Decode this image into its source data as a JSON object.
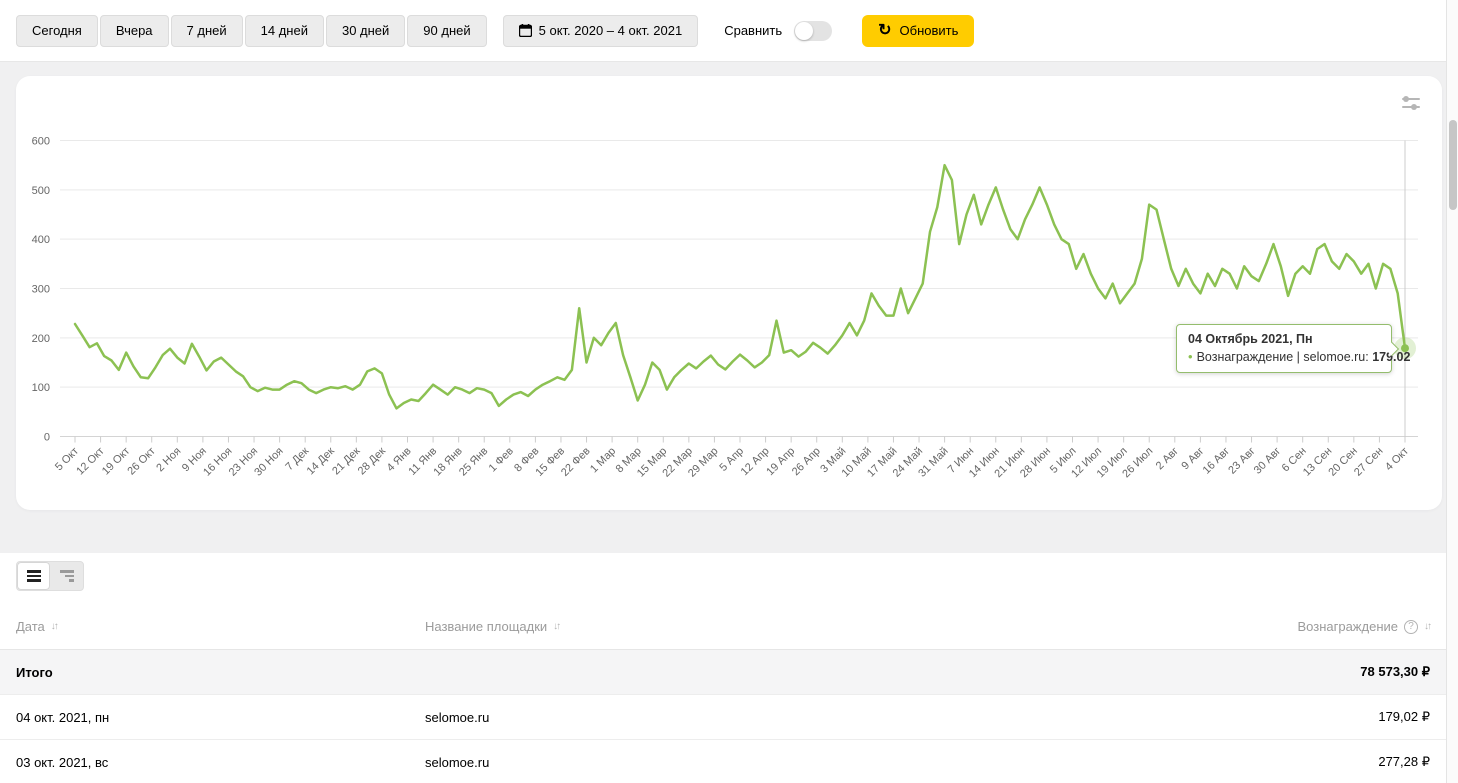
{
  "toolbar": {
    "presets": [
      "Сегодня",
      "Вчера",
      "7 дней",
      "14 дней",
      "30 дней",
      "90 дней"
    ],
    "date_range": "5 окт. 2020 – 4 окт. 2021",
    "compare_label": "Сравнить",
    "compare_on": false,
    "refresh_label": "Обновить",
    "refresh_glyph": "↻"
  },
  "colors": {
    "accent_yellow": "#ffcc00",
    "line_green": "#8cc152",
    "halo_green": "rgba(141,195,84,0.25)"
  },
  "chart_data": {
    "type": "line",
    "title": "",
    "ylabel": "",
    "xlabel": "",
    "ylim": [
      0,
      600
    ],
    "y_ticks": [
      0,
      100,
      200,
      300,
      400,
      500,
      600
    ],
    "grid": true,
    "legend": "none",
    "x_ticks": [
      "5 Окт",
      "12 Окт",
      "19 Окт",
      "26 Окт",
      "2 Ноя",
      "9 Ноя",
      "16 Ноя",
      "23 Ноя",
      "30 Ноя",
      "7 Дек",
      "14 Дек",
      "21 Дек",
      "28 Дек",
      "4 Янв",
      "11 Янв",
      "18 Янв",
      "25 Янв",
      "1 Фев",
      "8 Фев",
      "15 Фев",
      "22 Фев",
      "1 Мар",
      "8 Мар",
      "15 Мар",
      "22 Мар",
      "29 Мар",
      "5 Апр",
      "12 Апр",
      "19 Апр",
      "26 Апр",
      "3 Май",
      "10 Май",
      "17 Май",
      "24 Май",
      "31 Май",
      "7 Июн",
      "14 Июн",
      "21 Июн",
      "28 Июн",
      "5 Июл",
      "12 Июл",
      "19 Июл",
      "26 Июл",
      "2 Авг",
      "9 Авг",
      "16 Авг",
      "23 Авг",
      "30 Авг",
      "6 Сен",
      "13 Сен",
      "20 Сен",
      "27 Сен",
      "4 Окт"
    ],
    "series": [
      {
        "name": "Вознаграждение | selomoe.ru",
        "color": "#8cc152",
        "values": [
          228,
          205,
          181,
          189,
          163,
          154,
          135,
          170,
          142,
          120,
          118,
          140,
          165,
          178,
          160,
          148,
          188,
          162,
          134,
          152,
          160,
          146,
          132,
          122,
          100,
          92,
          99,
          95,
          95,
          105,
          112,
          108,
          95,
          88,
          95,
          100,
          98,
          102,
          95,
          105,
          132,
          138,
          128,
          85,
          57,
          68,
          75,
          72,
          88,
          105,
          95,
          85,
          100,
          95,
          88,
          98,
          95,
          88,
          62,
          75,
          85,
          90,
          82,
          95,
          105,
          112,
          120,
          115,
          135,
          260,
          150,
          200,
          185,
          210,
          230,
          165,
          120,
          73,
          105,
          150,
          135,
          95,
          120,
          135,
          148,
          138,
          152,
          164,
          146,
          136,
          152,
          166,
          154,
          140,
          150,
          165,
          235,
          170,
          175,
          162,
          172,
          190,
          180,
          168,
          185,
          205,
          230,
          205,
          235,
          290,
          265,
          245,
          245,
          300,
          250,
          280,
          310,
          415,
          465,
          550,
          520,
          390,
          450,
          490,
          430,
          470,
          505,
          460,
          420,
          400,
          440,
          470,
          505,
          470,
          430,
          400,
          390,
          340,
          370,
          330,
          300,
          280,
          310,
          270,
          290,
          310,
          360,
          470,
          460,
          400,
          340,
          305,
          340,
          310,
          290,
          330,
          305,
          340,
          330,
          300,
          345,
          325,
          315,
          350,
          390,
          345,
          285,
          330,
          345,
          330,
          380,
          390,
          355,
          340,
          370,
          355,
          330,
          350,
          300,
          350,
          340,
          290,
          179
        ]
      }
    ]
  },
  "tooltip": {
    "title": "04 Октябрь 2021, Пн",
    "bullet": "•",
    "series_label": "Вознаграждение | selomoe.ru:",
    "value": "179.02"
  },
  "table": {
    "columns": [
      "Дата",
      "Название площадки",
      "Вознаграждение"
    ],
    "sort_glyph": "↓↑",
    "help_glyph": "?",
    "total_row": {
      "label": "Итого",
      "value": "78 573,30 ₽"
    },
    "rows": [
      {
        "date": "04 окт. 2021, пн",
        "site": "selomoe.ru",
        "value": "179,02 ₽"
      },
      {
        "date": "03 окт. 2021, вс",
        "site": "selomoe.ru",
        "value": "277,28 ₽"
      }
    ]
  }
}
